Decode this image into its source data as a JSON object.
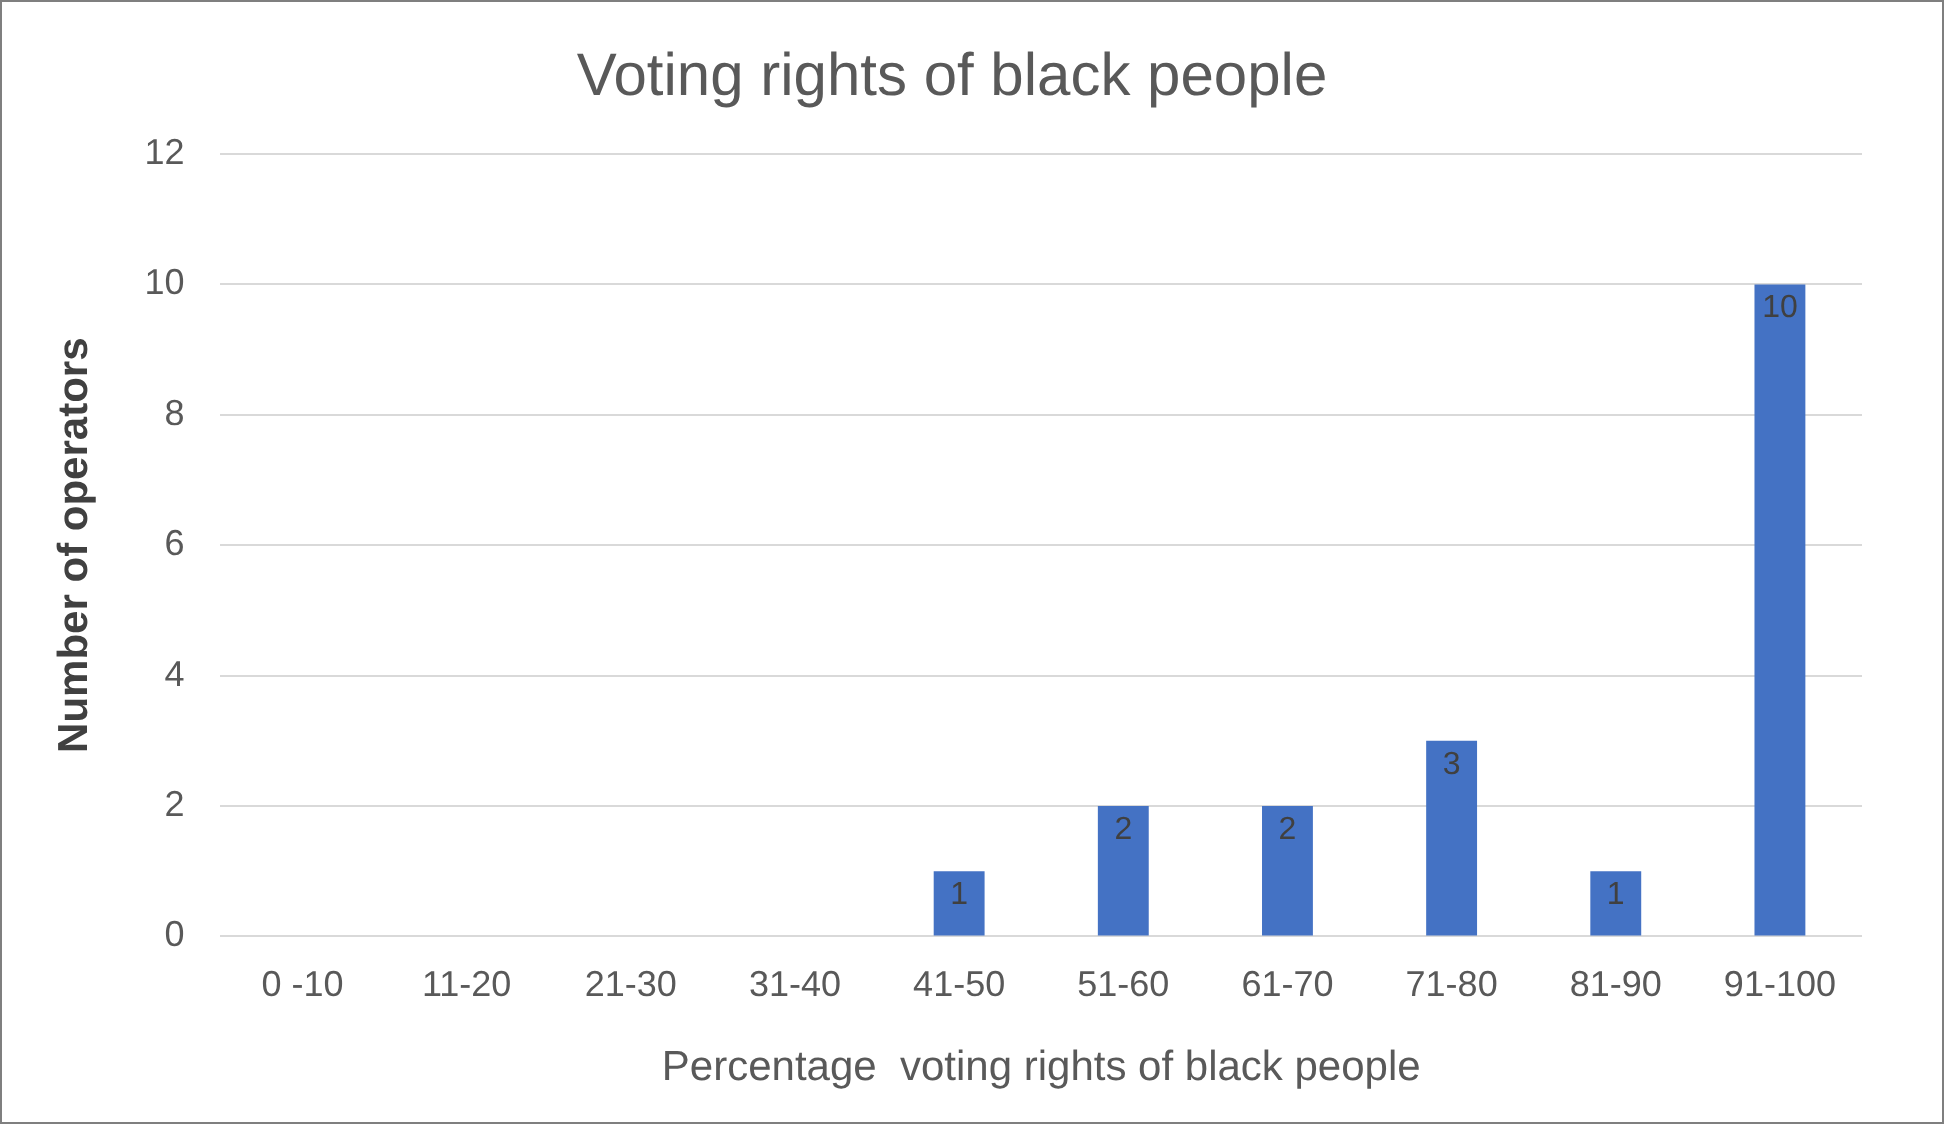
{
  "chart_data": {
    "type": "bar",
    "title": "Voting rights of black people",
    "xlabel": "Percentage  voting rights of black people",
    "ylabel": "Number of operators",
    "categories": [
      "0 -10",
      "11-20",
      "21-30",
      "31-40",
      "41-50",
      "51-60",
      "61-70",
      "71-80",
      "81-90",
      "91-100"
    ],
    "values": [
      0,
      0,
      0,
      0,
      1,
      2,
      2,
      3,
      1,
      10
    ],
    "value_labels": [
      null,
      null,
      null,
      null,
      "1",
      "2",
      "2",
      "3",
      "1",
      "10"
    ],
    "color": "#4472c4",
    "ylim": [
      0,
      12
    ],
    "yticks": [
      0,
      2,
      4,
      6,
      8,
      10,
      12
    ],
    "grid": "y",
    "legend": false
  }
}
